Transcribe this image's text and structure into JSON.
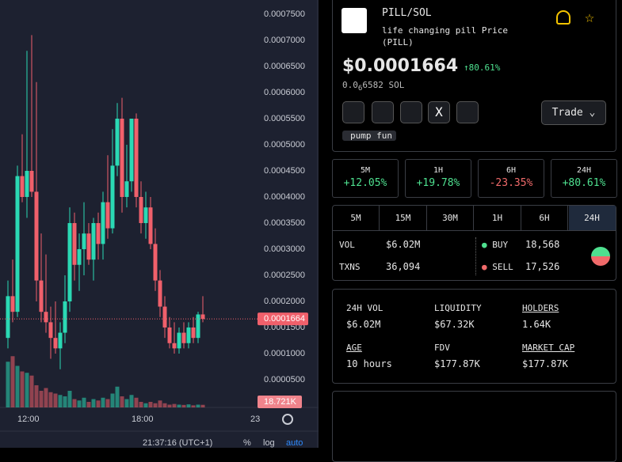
{
  "chart_data": {
    "type": "candlestick",
    "up_color": "#2bd9b4",
    "down_color": "#f0606b",
    "ylim": [
      -3.1e-06,
      0.0007773
    ],
    "yticks": [
      {
        "value": 0.00075,
        "label": "0.0007500"
      },
      {
        "value": 0.0007,
        "label": "0.0007000"
      },
      {
        "value": 0.00065,
        "label": "0.0006500"
      },
      {
        "value": 0.0006,
        "label": "0.0006000"
      },
      {
        "value": 0.00055,
        "label": "0.0005500"
      },
      {
        "value": 0.0005,
        "label": "0.0005000"
      },
      {
        "value": 0.00045,
        "label": "0.0004500"
      },
      {
        "value": 0.0004,
        "label": "0.0004000"
      },
      {
        "value": 0.00035,
        "label": "0.0003500"
      },
      {
        "value": 0.0003,
        "label": "0.0003000"
      },
      {
        "value": 0.00025,
        "label": "0.0002500"
      },
      {
        "value": 0.0002,
        "label": "0.0002000"
      },
      {
        "value": 0.00015,
        "label": "0.0001500"
      },
      {
        "value": 0.0001,
        "label": "0.0001000"
      },
      {
        "value": 5e-05,
        "label": "0.0000500"
      }
    ],
    "x_labels": [
      "12:00",
      "18:00",
      "23"
    ],
    "candles": [
      {
        "o": 0.00013,
        "h": 0.00024,
        "l": 0.00011,
        "c": 0.00021
      },
      {
        "o": 0.00021,
        "h": 0.00028,
        "l": 0.00016,
        "c": 0.00018
      },
      {
        "o": 0.00018,
        "h": 0.00046,
        "l": 0.00017,
        "c": 0.00044
      },
      {
        "o": 0.00044,
        "h": 0.00052,
        "l": 0.00039,
        "c": 0.0004
      },
      {
        "o": 0.0004,
        "h": 0.00068,
        "l": 0.00036,
        "c": 0.00045
      },
      {
        "o": 0.00045,
        "h": 0.00071,
        "l": 0.0004,
        "c": 0.00041
      },
      {
        "o": 0.00041,
        "h": 0.00062,
        "l": 0.0002,
        "c": 0.00024
      },
      {
        "o": 0.00024,
        "h": 0.00033,
        "l": 0.00016,
        "c": 0.00018
      },
      {
        "o": 0.00018,
        "h": 0.00029,
        "l": 0.00014,
        "c": 0.00016
      },
      {
        "o": 0.00016,
        "h": 0.00019,
        "l": 9e-05,
        "c": 0.00013
      },
      {
        "o": 0.00013,
        "h": 0.0002,
        "l": 0.0001,
        "c": 0.00011
      },
      {
        "o": 0.00011,
        "h": 0.00016,
        "l": 7e-05,
        "c": 0.00014
      },
      {
        "o": 0.00014,
        "h": 0.00025,
        "l": 0.00012,
        "c": 0.0002
      },
      {
        "o": 0.0002,
        "h": 0.00038,
        "l": 0.00018,
        "c": 0.00035
      },
      {
        "o": 0.00035,
        "h": 0.00037,
        "l": 0.00024,
        "c": 0.00027
      },
      {
        "o": 0.00027,
        "h": 0.00033,
        "l": 0.00022,
        "c": 0.0003
      },
      {
        "o": 0.0003,
        "h": 0.00039,
        "l": 0.00025,
        "c": 0.00033
      },
      {
        "o": 0.00033,
        "h": 0.00035,
        "l": 0.00027,
        "c": 0.00028
      },
      {
        "o": 0.00028,
        "h": 0.00036,
        "l": 0.00024,
        "c": 0.00035
      },
      {
        "o": 0.00035,
        "h": 0.00037,
        "l": 0.00028,
        "c": 0.00031
      },
      {
        "o": 0.00031,
        "h": 0.00041,
        "l": 0.00028,
        "c": 0.00039
      },
      {
        "o": 0.00039,
        "h": 0.00048,
        "l": 0.00032,
        "c": 0.00034
      },
      {
        "o": 0.00034,
        "h": 0.00053,
        "l": 0.00033,
        "c": 0.00046
      },
      {
        "o": 0.00046,
        "h": 0.00058,
        "l": 0.00044,
        "c": 0.00055
      },
      {
        "o": 0.00055,
        "h": 0.00059,
        "l": 0.00037,
        "c": 0.0004
      },
      {
        "o": 0.0004,
        "h": 0.0005,
        "l": 0.00038,
        "c": 0.00043
      },
      {
        "o": 0.00043,
        "h": 0.00055,
        "l": 0.00041,
        "c": 0.00055
      },
      {
        "o": 0.00055,
        "h": 0.00056,
        "l": 0.00038,
        "c": 0.0004
      },
      {
        "o": 0.0004,
        "h": 0.00043,
        "l": 0.00033,
        "c": 0.00035
      },
      {
        "o": 0.00035,
        "h": 0.00041,
        "l": 0.00032,
        "c": 0.00038
      },
      {
        "o": 0.00038,
        "h": 0.0004,
        "l": 0.0003,
        "c": 0.00031
      },
      {
        "o": 0.00031,
        "h": 0.00034,
        "l": 0.00022,
        "c": 0.00024
      },
      {
        "o": 0.00024,
        "h": 0.00026,
        "l": 0.00017,
        "c": 0.00019
      },
      {
        "o": 0.00019,
        "h": 0.00021,
        "l": 0.00013,
        "c": 0.00015
      },
      {
        "o": 0.00015,
        "h": 0.00017,
        "l": 0.00011,
        "c": 0.00012
      },
      {
        "o": 0.00012,
        "h": 0.00016,
        "l": 0.0001,
        "c": 0.00011
      },
      {
        "o": 0.00011,
        "h": 0.00015,
        "l": 0.0001,
        "c": 0.00014
      },
      {
        "o": 0.00014,
        "h": 0.00016,
        "l": 0.00011,
        "c": 0.00012
      },
      {
        "o": 0.00012,
        "h": 0.00016,
        "l": 0.00011,
        "c": 0.00015
      },
      {
        "o": 0.00015,
        "h": 0.00017,
        "l": 0.00012,
        "c": 0.00013
      },
      {
        "o": 0.00013,
        "h": 0.00018,
        "l": 0.00012,
        "c": 0.000175
      },
      {
        "o": 0.000175,
        "h": 0.00021,
        "l": 0.00016,
        "c": 0.0001664
      }
    ],
    "volumes": [
      330000,
      370000,
      300000,
      260000,
      250000,
      230000,
      160000,
      120000,
      140000,
      110000,
      100000,
      90000,
      80000,
      120000,
      60000,
      50000,
      70000,
      40000,
      60000,
      50000,
      70000,
      60000,
      100000,
      150000,
      80000,
      60000,
      90000,
      70000,
      40000,
      30000,
      40000,
      30000,
      50000,
      30000,
      20000,
      25000,
      20000,
      18000,
      22000,
      15000,
      20000,
      18721
    ],
    "volume_ylim": [
      0,
      400000
    ],
    "last_price": 0.0001664,
    "last_volume_label": "18.721K",
    "time_label": "21:37:16 (UTC+1)",
    "pct": "%",
    "log": "log",
    "auto": "auto"
  },
  "token": {
    "symbol": "PILL",
    "pair": "/SOL",
    "name": "life changing pill Price (PILL)",
    "price": "$0.0001664",
    "change": "80.61%",
    "sol_a": "0.0",
    "sol_sub": "6",
    "sol_b": "6582 SOL",
    "trade": "Trade",
    "tag": "pump fun"
  },
  "periods": [
    {
      "label": "5M",
      "change": "+12.05%"
    },
    {
      "label": "1H",
      "change": "+19.78%"
    },
    {
      "label": "6H",
      "change": "-23.35%"
    },
    {
      "label": "24H",
      "change": "+80.61%"
    }
  ],
  "tabs": [
    "5M",
    "15M",
    "30M",
    "1H",
    "6H",
    "24H"
  ],
  "txns": {
    "vol_label": "VOL",
    "vol": "$6.02M",
    "txns_label": "TXNS",
    "txns": "36,094",
    "buy_label": "BUY",
    "buy": "18,568",
    "sell_label": "SELL",
    "sell": "17,526"
  },
  "info": [
    {
      "label": "24H VOL",
      "value": "$6.02M"
    },
    {
      "label": "LIQUIDITY",
      "value": "$67.32K"
    },
    {
      "label": "HOLDERS",
      "value": "1.64K"
    },
    {
      "label": "AGE",
      "value": "10 hours"
    },
    {
      "label": "FDV",
      "value": "$177.87K"
    },
    {
      "label": "MARKET CAP",
      "value": "$177.87K"
    }
  ]
}
